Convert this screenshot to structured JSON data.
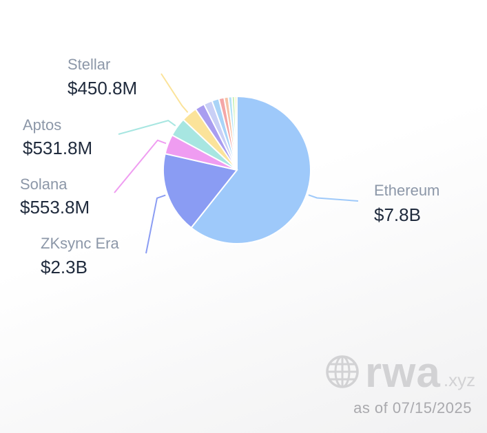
{
  "chart_data": {
    "type": "pie",
    "slices": [
      {
        "label": "Ethereum",
        "value": 7.8,
        "value_label": "$7.8B",
        "color": "#9ec9fa"
      },
      {
        "label": "ZKsync Era",
        "value": 2.3,
        "value_label": "$2.3B",
        "color": "#8a9cf3"
      },
      {
        "label": "Solana",
        "value": 0.5538,
        "value_label": "$553.8M",
        "color": "#ef9cf1"
      },
      {
        "label": "Aptos",
        "value": 0.5318,
        "value_label": "$531.8M",
        "color": "#a7e6e1"
      },
      {
        "label": "Stellar",
        "value": 0.4508,
        "value_label": "$450.8M",
        "color": "#fbe39a"
      },
      {
        "label": "",
        "value": 0.27,
        "value_label": "",
        "color": "#a99df0"
      },
      {
        "label": "",
        "value": 0.24,
        "value_label": "",
        "color": "#c9d0f6"
      },
      {
        "label": "",
        "value": 0.2,
        "value_label": "",
        "color": "#a9d4f7"
      },
      {
        "label": "",
        "value": 0.15,
        "value_label": "",
        "color": "#f4a6a6"
      },
      {
        "label": "",
        "value": 0.12,
        "value_label": "",
        "color": "#f6c3a6"
      },
      {
        "label": "",
        "value": 0.1,
        "value_label": "",
        "color": "#b5e2f7"
      },
      {
        "label": "",
        "value": 0.08,
        "value_label": "",
        "color": "#c9f0b8"
      },
      {
        "label": "",
        "value": 0.06,
        "value_label": "",
        "color": "#fbf1b3"
      }
    ]
  },
  "brand": {
    "name": "rwa",
    "tld": ".xyz",
    "icon": "globe-icon"
  },
  "footer": {
    "as_of": "as of 07/15/2025"
  }
}
